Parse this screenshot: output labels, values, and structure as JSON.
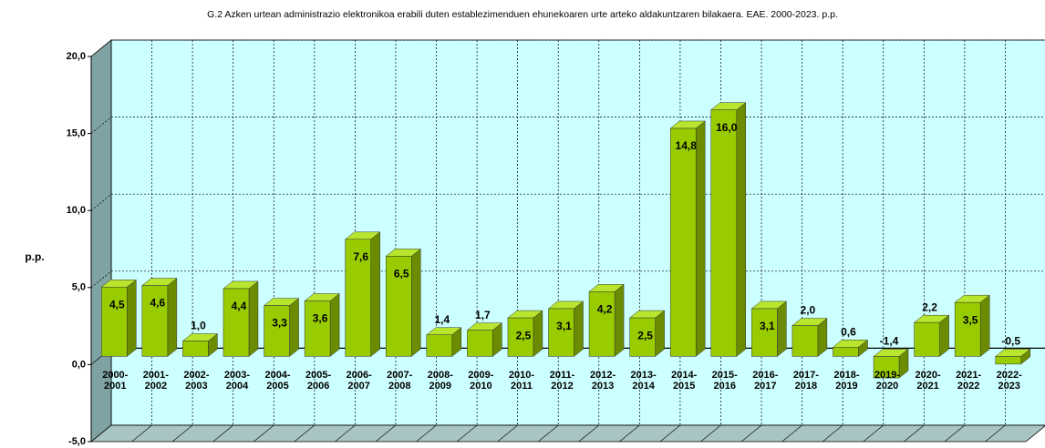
{
  "chart_data": {
    "type": "bar",
    "title": "G.2 Azken urtean administrazio elektronikoa erabili duten establezimenduen ehunekoaren urte arteko aldakuntzaren bilakaera. EAE. 2000-2023. p.p.",
    "y_label": "p.p.",
    "categories": [
      "2000-2001",
      "2001-2002",
      "2002-2003",
      "2003-2004",
      "2004-2005",
      "2005-2006",
      "2006-2007",
      "2007-2008",
      "2008-2009",
      "2009-2010",
      "2010-2011",
      "2011-2012",
      "2012-2013",
      "2013-2014",
      "2014-2015",
      "2015-2016",
      "2016-2017",
      "2017-2018",
      "2018-2019",
      "2019-2020",
      "2020-2021",
      "2021-2022",
      "2022-2023"
    ],
    "values": [
      4.5,
      4.6,
      1.0,
      4.4,
      3.3,
      3.6,
      7.6,
      6.5,
      1.4,
      1.7,
      2.5,
      3.1,
      4.2,
      2.5,
      14.8,
      16.0,
      3.1,
      2.0,
      0.6,
      -1.4,
      2.2,
      3.5,
      -0.5
    ],
    "value_labels": [
      "4,5",
      "4,6",
      "1,0",
      "4,4",
      "3,3",
      "3,6",
      "7,6",
      "6,5",
      "1,4",
      "1,7",
      "2,5",
      "3,1",
      "4,2",
      "2,5",
      "14,8",
      "16,0",
      "3,1",
      "2,0",
      "0,6",
      "-1,4",
      "2,2",
      "3,5",
      "-0,5"
    ],
    "color": "#99cc00",
    "ylim": [
      -5,
      20
    ],
    "yticks": [
      {
        "value": -5,
        "label": "-5,0"
      },
      {
        "value": 0,
        "label": "0,0"
      },
      {
        "value": 5,
        "label": "5,0"
      },
      {
        "value": 10,
        "label": "10,0"
      },
      {
        "value": 15,
        "label": "15,0"
      },
      {
        "value": 20,
        "label": "20,0"
      }
    ],
    "grid": true
  }
}
